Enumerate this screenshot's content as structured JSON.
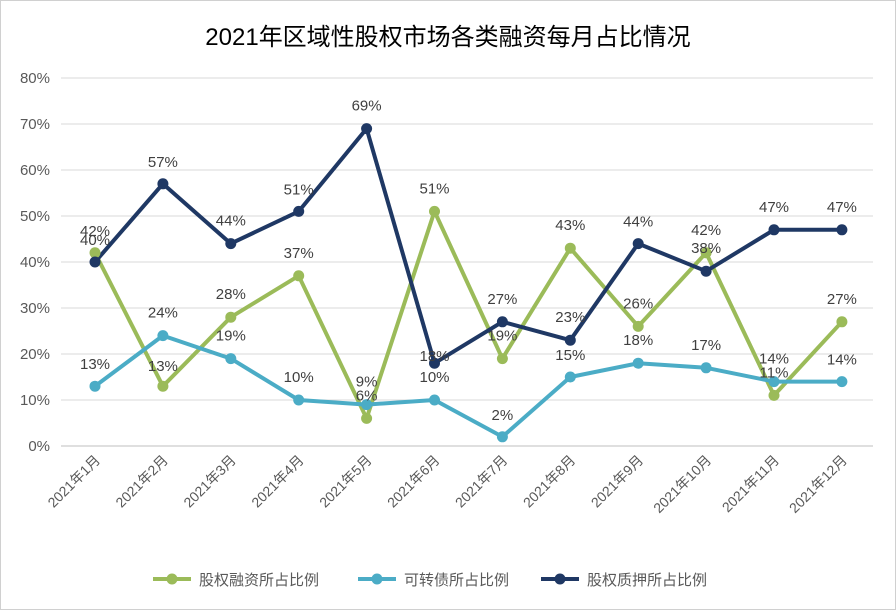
{
  "chart_data": {
    "type": "line",
    "title": "2021年区域性股权市场各类融资每月占比情况",
    "categories": [
      "2021年1月",
      "2021年2月",
      "2021年3月",
      "2021年4月",
      "2021年5月",
      "2021年6月",
      "2021年7月",
      "2021年8月",
      "2021年9月",
      "2021年10月",
      "2021年11月",
      "2021年12月"
    ],
    "yticks": [
      "0%",
      "10%",
      "20%",
      "30%",
      "40%",
      "50%",
      "60%",
      "70%",
      "80%"
    ],
    "ylim": [
      0,
      80
    ],
    "grid": true,
    "legend_position": "bottom",
    "series": [
      {
        "name": "股权融资所占比例",
        "color": "#9bbb59",
        "values": [
          42,
          13,
          28,
          37,
          6,
          51,
          19,
          43,
          26,
          42,
          11,
          27
        ],
        "labels": [
          "42%",
          "13%",
          "28%",
          "37%",
          "6%",
          "51%",
          "19%",
          "43%",
          "26%",
          "42%",
          "11%",
          "27%"
        ]
      },
      {
        "name": "可转债所占比例",
        "color": "#4bacc6",
        "values": [
          13,
          24,
          19,
          10,
          9,
          10,
          2,
          15,
          18,
          17,
          14,
          14
        ],
        "labels": [
          "13%",
          "24%",
          "19%",
          "10%",
          "9%",
          "10%",
          "2%",
          "15%",
          "18%",
          "17%",
          "14%",
          "14%"
        ]
      },
      {
        "name": "股权质押所占比例",
        "color": "#1f3864",
        "values": [
          40,
          57,
          44,
          51,
          69,
          18,
          27,
          23,
          44,
          38,
          47,
          47
        ],
        "labels": [
          "40%",
          "57%",
          "44%",
          "51%",
          "69%",
          "18%",
          "27%",
          "23%",
          "44%",
          "38%",
          "47%",
          "47%"
        ]
      }
    ]
  }
}
